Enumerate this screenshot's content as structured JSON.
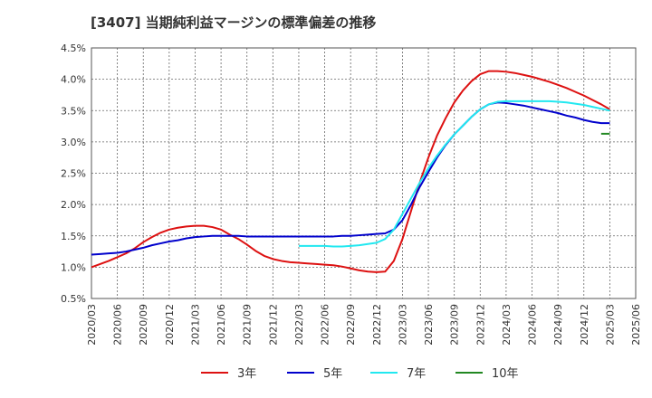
{
  "chart_data": {
    "type": "line",
    "title": "[3407]  当期純利益マージンの標準偏差の推移",
    "xlabel": "",
    "ylabel": "",
    "ylim": [
      0.5,
      4.5
    ],
    "yticks": [
      "0.5%",
      "1.0%",
      "1.5%",
      "2.0%",
      "2.5%",
      "3.0%",
      "3.5%",
      "4.0%",
      "4.5%"
    ],
    "y_tick_values": [
      0.5,
      1.0,
      1.5,
      2.0,
      2.5,
      3.0,
      3.5,
      4.0,
      4.5
    ],
    "x_tick_labels": [
      "2020/03",
      "2020/06",
      "2020/09",
      "2020/12",
      "2021/03",
      "2021/06",
      "2021/09",
      "2021/12",
      "2022/03",
      "2022/06",
      "2022/09",
      "2022/12",
      "2023/03",
      "2023/06",
      "2023/09",
      "2023/12",
      "2024/03",
      "2024/06",
      "2024/09",
      "2024/12",
      "2025/03",
      "2025/06"
    ],
    "x": [
      "2020/03",
      "2020/04",
      "2020/05",
      "2020/06",
      "2020/07",
      "2020/08",
      "2020/09",
      "2020/10",
      "2020/11",
      "2020/12",
      "2021/01",
      "2021/02",
      "2021/03",
      "2021/04",
      "2021/05",
      "2021/06",
      "2021/07",
      "2021/08",
      "2021/09",
      "2021/10",
      "2021/11",
      "2021/12",
      "2022/01",
      "2022/02",
      "2022/03",
      "2022/04",
      "2022/05",
      "2022/06",
      "2022/07",
      "2022/08",
      "2022/09",
      "2022/10",
      "2022/11",
      "2022/12",
      "2023/01",
      "2023/02",
      "2023/03",
      "2023/04",
      "2023/05",
      "2023/06",
      "2023/07",
      "2023/08",
      "2023/09",
      "2023/10",
      "2023/11",
      "2023/12",
      "2024/01",
      "2024/02",
      "2024/03",
      "2024/04",
      "2024/05",
      "2024/06",
      "2024/07",
      "2024/08",
      "2024/09",
      "2024/10",
      "2024/11",
      "2024/12",
      "2025/01",
      "2025/02",
      "2025/03"
    ],
    "grid": true,
    "legend_position": "bottom",
    "series": [
      {
        "name": "3年",
        "color": "#dd1111",
        "values": [
          1.0,
          1.05,
          1.1,
          1.16,
          1.22,
          1.3,
          1.4,
          1.48,
          1.55,
          1.6,
          1.63,
          1.65,
          1.66,
          1.66,
          1.64,
          1.6,
          1.52,
          1.45,
          1.36,
          1.26,
          1.18,
          1.13,
          1.1,
          1.08,
          1.07,
          1.06,
          1.05,
          1.04,
          1.03,
          1.01,
          0.98,
          0.95,
          0.93,
          0.92,
          0.93,
          1.1,
          1.45,
          1.9,
          2.35,
          2.75,
          3.1,
          3.38,
          3.63,
          3.82,
          3.97,
          4.08,
          4.13,
          4.13,
          4.12,
          4.1,
          4.07,
          4.04,
          4.0,
          3.96,
          3.91,
          3.86,
          3.8,
          3.74,
          3.67,
          3.6,
          3.52
        ]
      },
      {
        "name": "5年",
        "color": "#0000cc",
        "values": [
          1.2,
          1.21,
          1.22,
          1.23,
          1.25,
          1.28,
          1.31,
          1.35,
          1.38,
          1.41,
          1.43,
          1.46,
          1.48,
          1.49,
          1.5,
          1.5,
          1.5,
          1.5,
          1.49,
          1.49,
          1.49,
          1.49,
          1.49,
          1.49,
          1.49,
          1.49,
          1.49,
          1.49,
          1.49,
          1.5,
          1.5,
          1.51,
          1.52,
          1.53,
          1.54,
          1.6,
          1.75,
          2.0,
          2.28,
          2.52,
          2.75,
          2.95,
          3.12,
          3.26,
          3.4,
          3.52,
          3.6,
          3.63,
          3.62,
          3.6,
          3.58,
          3.55,
          3.52,
          3.49,
          3.46,
          3.42,
          3.39,
          3.35,
          3.32,
          3.3,
          3.3
        ]
      },
      {
        "name": "7年",
        "color": "#22e8f0",
        "values": [
          null,
          null,
          null,
          null,
          null,
          null,
          null,
          null,
          null,
          null,
          null,
          null,
          null,
          null,
          null,
          null,
          null,
          null,
          null,
          null,
          null,
          null,
          null,
          null,
          1.34,
          1.34,
          1.34,
          1.34,
          1.33,
          1.33,
          1.34,
          1.35,
          1.37,
          1.39,
          1.45,
          1.6,
          1.85,
          2.1,
          2.35,
          2.58,
          2.78,
          2.96,
          3.12,
          3.26,
          3.4,
          3.52,
          3.6,
          3.64,
          3.65,
          3.65,
          3.65,
          3.65,
          3.65,
          3.65,
          3.64,
          3.63,
          3.61,
          3.59,
          3.56,
          3.53,
          3.5
        ]
      },
      {
        "name": "10年",
        "color": "#228822",
        "values": [
          null,
          null,
          null,
          null,
          null,
          null,
          null,
          null,
          null,
          null,
          null,
          null,
          null,
          null,
          null,
          null,
          null,
          null,
          null,
          null,
          null,
          null,
          null,
          null,
          null,
          null,
          null,
          null,
          null,
          null,
          null,
          null,
          null,
          null,
          null,
          null,
          null,
          null,
          null,
          null,
          null,
          null,
          null,
          null,
          null,
          null,
          null,
          null,
          null,
          null,
          null,
          null,
          null,
          null,
          null,
          null,
          null,
          null,
          null,
          3.13,
          3.13
        ]
      }
    ]
  }
}
